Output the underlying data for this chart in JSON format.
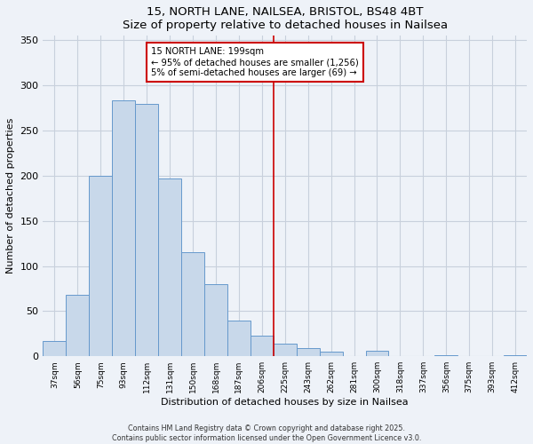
{
  "title": "15, NORTH LANE, NAILSEA, BRISTOL, BS48 4BT",
  "subtitle": "Size of property relative to detached houses in Nailsea",
  "xlabel": "Distribution of detached houses by size in Nailsea",
  "ylabel": "Number of detached properties",
  "bar_labels": [
    "37sqm",
    "56sqm",
    "75sqm",
    "93sqm",
    "112sqm",
    "131sqm",
    "150sqm",
    "168sqm",
    "187sqm",
    "206sqm",
    "225sqm",
    "243sqm",
    "262sqm",
    "281sqm",
    "300sqm",
    "318sqm",
    "337sqm",
    "356sqm",
    "375sqm",
    "393sqm",
    "412sqm"
  ],
  "bar_values": [
    17,
    68,
    200,
    283,
    280,
    197,
    115,
    80,
    40,
    23,
    14,
    9,
    5,
    0,
    6,
    0,
    0,
    1,
    0,
    0,
    1
  ],
  "bar_color": "#c8d8ea",
  "bar_edge_color": "#6699cc",
  "vline_x": 9.5,
  "vline_color": "#cc0000",
  "annotation_title": "15 NORTH LANE: 199sqm",
  "annotation_line1": "← 95% of detached houses are smaller (1,256)",
  "annotation_line2": "5% of semi-detached houses are larger (69) →",
  "annotation_box_color": "#cc0000",
  "ylim": [
    0,
    355
  ],
  "yticks": [
    0,
    50,
    100,
    150,
    200,
    250,
    300,
    350
  ],
  "footer1": "Contains HM Land Registry data © Crown copyright and database right 2025.",
  "footer2": "Contains public sector information licensed under the Open Government Licence v3.0.",
  "bg_color": "#eef2f8",
  "plot_bg_color": "#eef2f8",
  "grid_color": "#c8d0dc"
}
